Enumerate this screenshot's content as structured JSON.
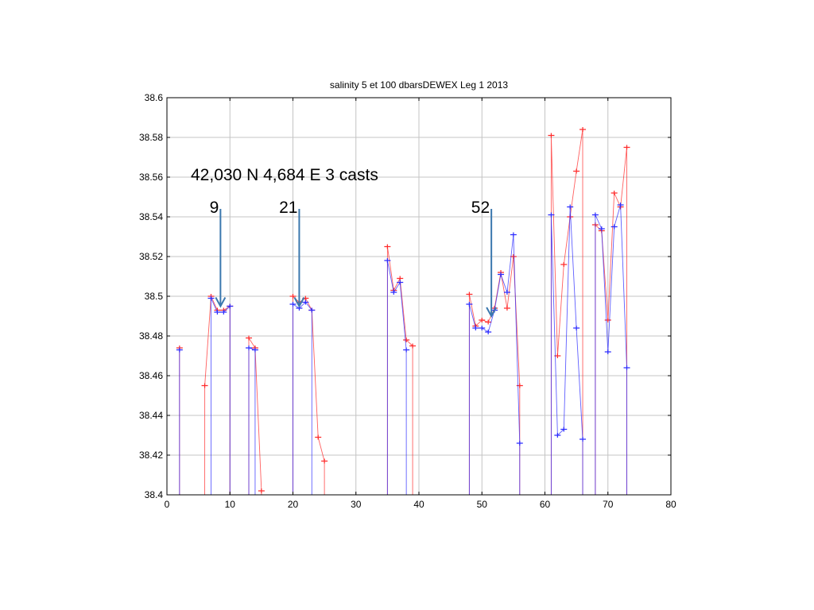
{
  "chart_data": {
    "type": "line",
    "title": "salinity 5 et 100 dbarsDEWEX Leg 1 2013",
    "xlabel": "",
    "ylabel": "",
    "xlim": [
      0,
      80
    ],
    "ylim": [
      38.4,
      38.6
    ],
    "grid": true,
    "xticks": [
      0,
      10,
      20,
      30,
      40,
      50,
      60,
      70,
      80
    ],
    "yticks": [
      38.4,
      38.42,
      38.44,
      38.46,
      38.48,
      38.5,
      38.52,
      38.54,
      38.56,
      38.58,
      38.6
    ],
    "ytick_labels": [
      "38.4",
      "38.42",
      "38.44",
      "38.46",
      "38.48",
      "38.5",
      "38.52",
      "38.54",
      "38.56",
      "38.58",
      "38.6"
    ],
    "series": [
      {
        "color": "#ff2a2a",
        "marker": "+",
        "x": [
          2,
          6,
          7,
          8,
          9,
          10,
          13,
          14,
          15,
          20,
          21,
          22,
          23,
          24,
          25,
          35,
          36,
          37,
          38,
          39,
          48,
          49,
          50,
          51,
          52,
          53,
          54,
          55,
          56,
          61,
          62,
          63,
          64,
          65,
          66,
          68,
          69,
          70,
          71,
          72,
          73
        ],
        "y": [
          38.474,
          38.455,
          38.5,
          38.493,
          38.493,
          38.495,
          38.479,
          38.474,
          38.402,
          38.5,
          38.497,
          38.499,
          38.493,
          38.429,
          38.417,
          38.525,
          38.503,
          38.509,
          38.478,
          38.475,
          38.501,
          38.485,
          38.488,
          38.487,
          38.494,
          38.512,
          38.494,
          38.52,
          38.455,
          38.581,
          38.47,
          38.516,
          38.54,
          38.563,
          38.584,
          38.536,
          38.533,
          38.488,
          38.552,
          38.545,
          38.575
        ]
      },
      {
        "color": "#2a2aff",
        "marker": "+",
        "x": [
          2,
          7,
          8,
          9,
          10,
          13,
          14,
          20,
          21,
          22,
          23,
          35,
          36,
          37,
          38,
          48,
          49,
          50,
          51,
          52,
          53,
          54,
          55,
          56,
          61,
          62,
          63,
          64,
          65,
          66,
          68,
          69,
          70,
          71,
          72,
          73
        ],
        "y": [
          38.473,
          38.499,
          38.492,
          38.492,
          38.495,
          38.474,
          38.473,
          38.496,
          38.494,
          38.497,
          38.493,
          38.518,
          38.502,
          38.507,
          38.473,
          38.496,
          38.484,
          38.484,
          38.482,
          38.493,
          38.511,
          38.502,
          38.531,
          38.426,
          38.541,
          38.43,
          38.433,
          38.545,
          38.484,
          38.428,
          38.541,
          38.534,
          38.472,
          38.535,
          38.546,
          38.464
        ]
      }
    ],
    "annotations": [
      {
        "text": "42,030  N 4,684 E  3 casts"
      },
      {
        "text": "9",
        "x": 8.5,
        "y_from": 38.544,
        "y_to": 38.495
      },
      {
        "text": "21",
        "x": 21,
        "y_from": 38.544,
        "y_to": 38.495
      },
      {
        "text": "52",
        "x": 51.5,
        "y_from": 38.544,
        "y_to": 38.49
      }
    ]
  }
}
